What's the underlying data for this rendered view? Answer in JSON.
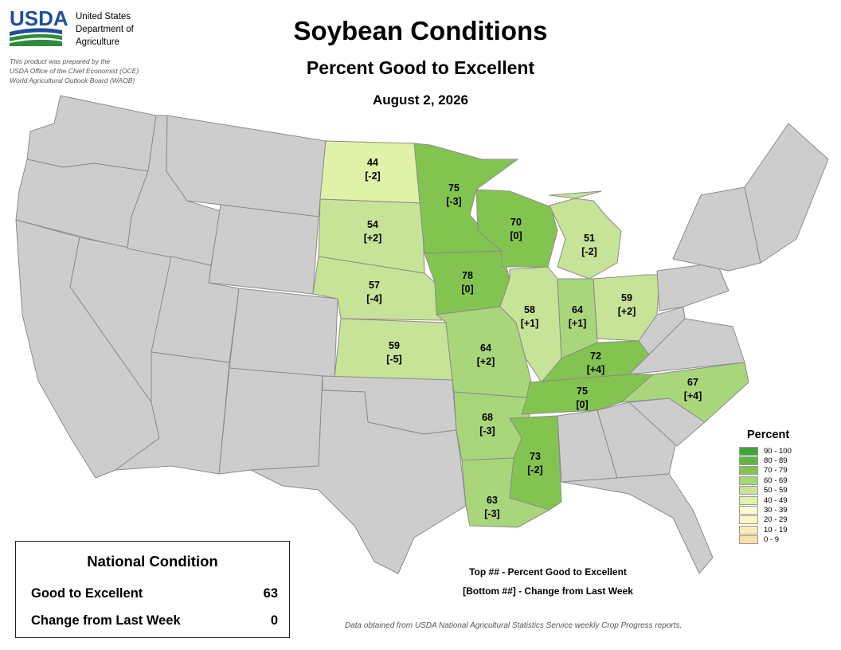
{
  "header": {
    "logo_text": "USDA",
    "agency_lines": [
      "United States",
      "Department of",
      "Agriculture"
    ],
    "prepared_lines": [
      "This product was prepared by the",
      "USDA Office of the Chief Economist (OCE)",
      "World Agricultural Outlook Board (WAOB)"
    ],
    "title": "Soybean Conditions",
    "subtitle": "Percent Good to Excellent",
    "date": "August 2, 2026"
  },
  "colors": {
    "no_data_state": "#cdcdcd",
    "state_border": "#8c8c8c",
    "logo_blue": "#1f4e9c",
    "logo_green": "#2e8b3c"
  },
  "legend": {
    "title": "Percent",
    "bins": [
      {
        "label": "90 - 100",
        "color": "#3fa535"
      },
      {
        "label": "80 - 89",
        "color": "#5fb443"
      },
      {
        "label": "70 - 79",
        "color": "#83c451"
      },
      {
        "label": "60 - 69",
        "color": "#a9d67a"
      },
      {
        "label": "50 - 59",
        "color": "#c7e397"
      },
      {
        "label": "40 - 49",
        "color": "#dff2a7"
      },
      {
        "label": "30 - 39",
        "color": "#fefdd0"
      },
      {
        "label": "20 - 29",
        "color": "#fef6c4"
      },
      {
        "label": "10 - 19",
        "color": "#fdebb6"
      },
      {
        "label": "0 - 9",
        "color": "#fbe1a4"
      }
    ]
  },
  "states": [
    {
      "id": "ND",
      "pct": "44",
      "chg": "[-2]"
    },
    {
      "id": "SD",
      "pct": "54",
      "chg": "[+2]"
    },
    {
      "id": "NE",
      "pct": "57",
      "chg": "[-4]"
    },
    {
      "id": "KS",
      "pct": "59",
      "chg": "[-5]"
    },
    {
      "id": "MN",
      "pct": "75",
      "chg": "[-3]"
    },
    {
      "id": "IA",
      "pct": "78",
      "chg": "[0]"
    },
    {
      "id": "MO",
      "pct": "64",
      "chg": "[+2]"
    },
    {
      "id": "AR",
      "pct": "68",
      "chg": "[-3]"
    },
    {
      "id": "LA",
      "pct": "63",
      "chg": "[-3]"
    },
    {
      "id": "WI",
      "pct": "70",
      "chg": "[0]"
    },
    {
      "id": "IL",
      "pct": "58",
      "chg": "[+1]"
    },
    {
      "id": "MI",
      "pct": "51",
      "chg": "[-2]"
    },
    {
      "id": "IN",
      "pct": "64",
      "chg": "[+1]"
    },
    {
      "id": "OH",
      "pct": "59",
      "chg": "[+2]"
    },
    {
      "id": "KY",
      "pct": "72",
      "chg": "[+4]"
    },
    {
      "id": "TN",
      "pct": "75",
      "chg": "[0]"
    },
    {
      "id": "MS",
      "pct": "73",
      "chg": "[-2]"
    },
    {
      "id": "NC",
      "pct": "67",
      "chg": "[+4]"
    }
  ],
  "national": {
    "title": "National Condition",
    "rows": [
      {
        "label": "Good to Excellent",
        "value": "63"
      },
      {
        "label": "Change from Last Week",
        "value": "0"
      }
    ]
  },
  "key_notes": [
    "Top ## - Percent Good to Excellent",
    "[Bottom ##] - Change from Last Week"
  ],
  "source": "Data obtained from USDA National Agricultural Statistics Service weekly Crop Progress reports."
}
